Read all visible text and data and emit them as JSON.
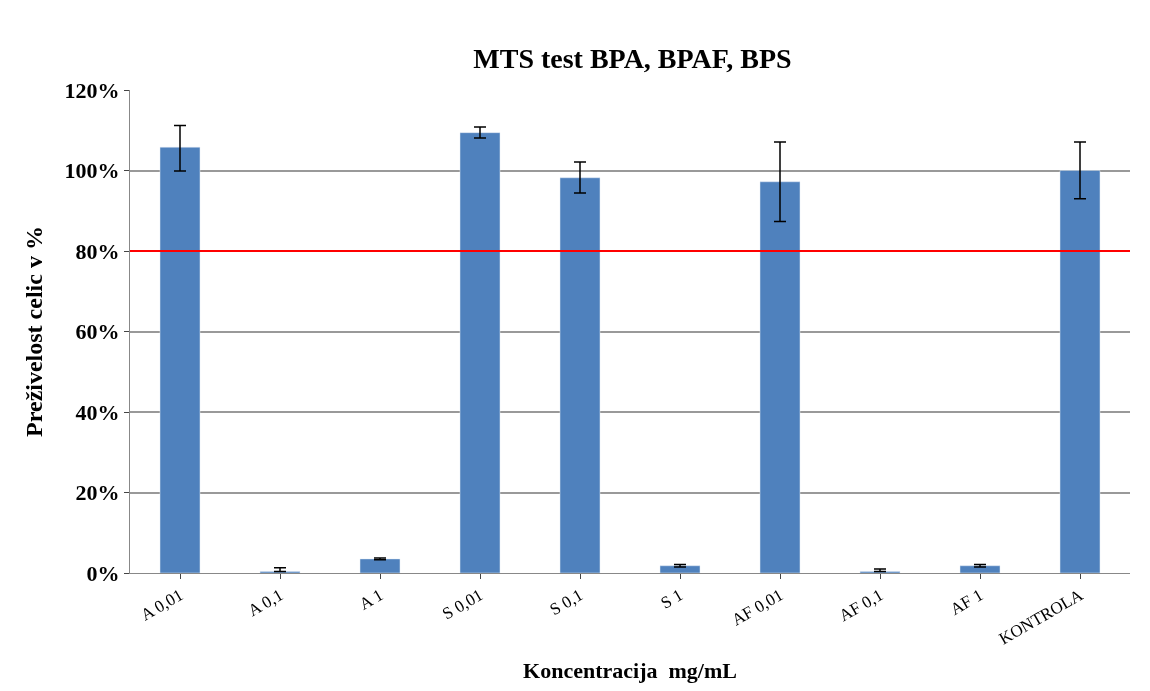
{
  "chart_data": {
    "type": "bar",
    "title": "MTS test BPA, BPAF, BPS",
    "xlabel": "Koncentracija  mg/mL",
    "ylabel": "Preživelost celic v %",
    "categories": [
      "A 0,01",
      "A 0,1",
      "A 1",
      "S 0,01",
      "S 0,1",
      "S 1",
      "AF 0,01",
      "AF 0,1",
      "AF 1",
      "KONTROLA"
    ],
    "values": [
      105.8,
      0.4,
      3.5,
      109.4,
      98.2,
      1.8,
      97.2,
      0.4,
      1.8,
      100
    ],
    "errors": [
      [
        99.9,
        111.2
      ],
      [
        0.4,
        1.3
      ],
      [
        3.3,
        3.7
      ],
      [
        108.1,
        110.8
      ],
      [
        94.4,
        102.1
      ],
      [
        1.5,
        2.1
      ],
      [
        87.3,
        107.1
      ],
      [
        0.4,
        1.0
      ],
      [
        1.5,
        2.1
      ],
      [
        93.0,
        107.1
      ]
    ],
    "color": "#4f81bd",
    "ylim": [
      0,
      120
    ],
    "yticks": [
      {
        "value": 0,
        "label": "0%"
      },
      {
        "value": 20,
        "label": "20%"
      },
      {
        "value": 40,
        "label": "40%"
      },
      {
        "value": 60,
        "label": "60%"
      },
      {
        "value": 80,
        "label": "80%"
      },
      {
        "value": 100,
        "label": "100%"
      },
      {
        "value": 120,
        "label": "120%"
      }
    ],
    "ref_lines": [
      {
        "axis": "y",
        "value": 80,
        "label": null,
        "color": "#ff0000"
      }
    ],
    "grid": "y",
    "legend": false
  }
}
